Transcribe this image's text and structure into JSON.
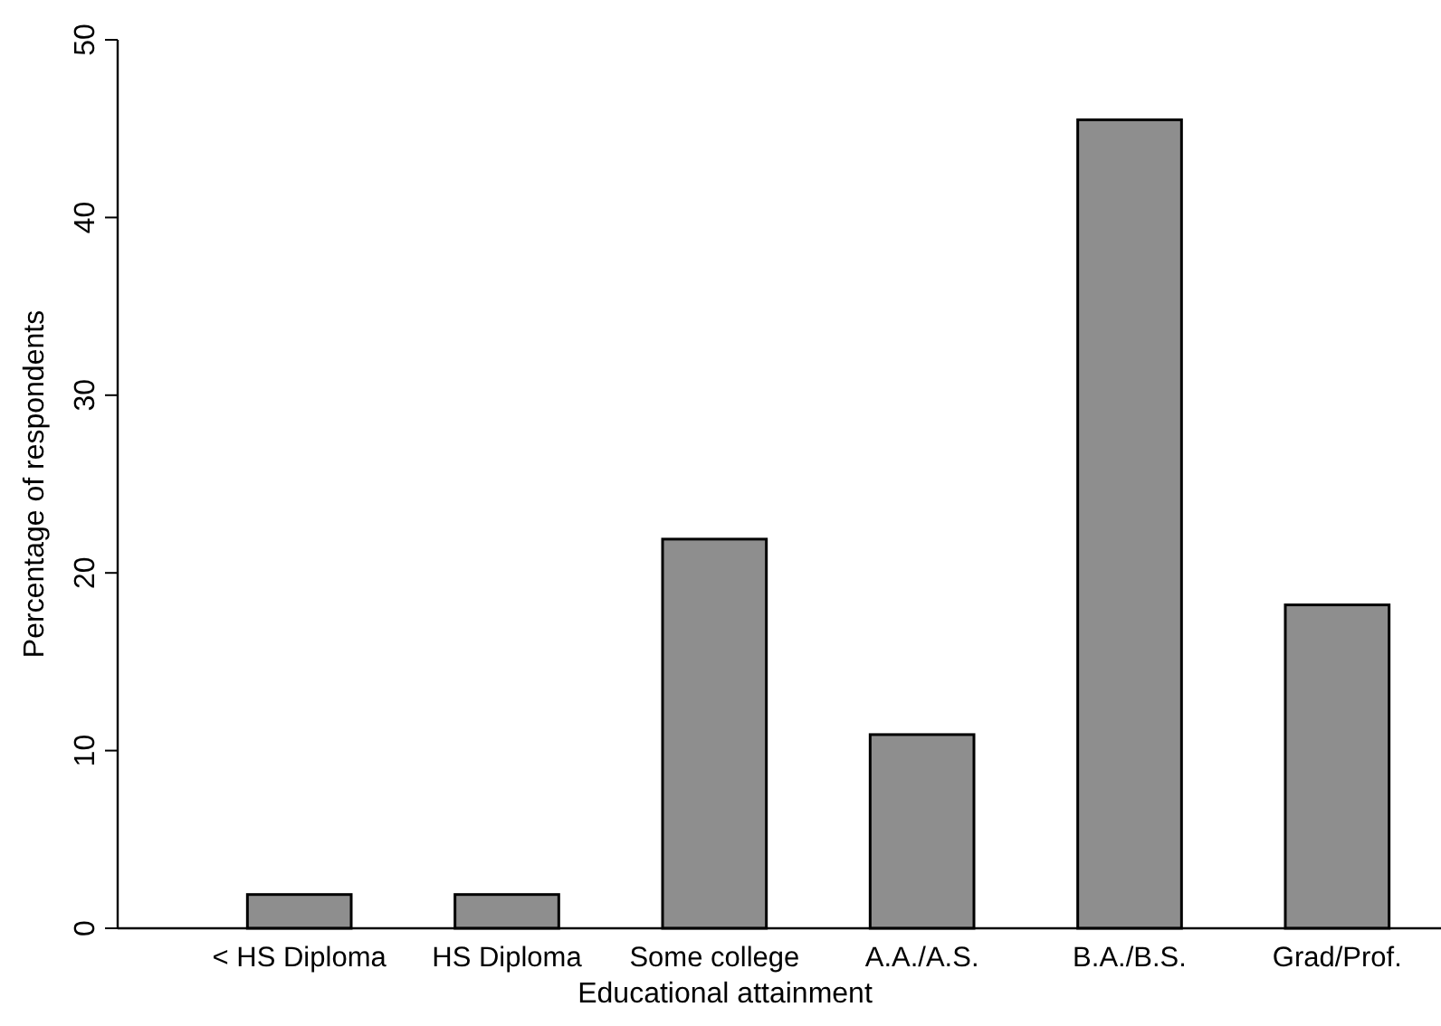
{
  "chart_data": {
    "type": "bar",
    "xlabel": "Educational attainment",
    "ylabel": "Percentage of respondents",
    "categories": [
      "< HS Diploma",
      "HS Diploma",
      "Some college",
      "A.A./A.S.",
      "B.A./B.S.",
      "Grad/Prof."
    ],
    "values": [
      1.9,
      1.9,
      21.9,
      10.9,
      45.5,
      18.2
    ],
    "color": "#8e8e8e",
    "ylim": [
      0,
      50
    ],
    "yticks": [
      0,
      10,
      20,
      30,
      40,
      50
    ],
    "grid": false
  }
}
